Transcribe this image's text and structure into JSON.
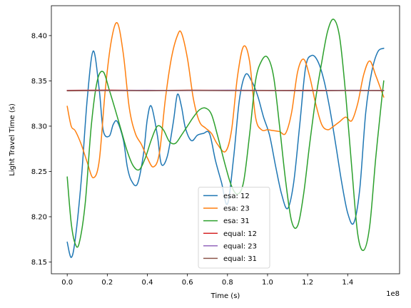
{
  "chart_data": {
    "type": "line",
    "xlabel": "Time (s)",
    "ylabel": "Light Travel Time (s)",
    "x_scale_label": "1e8",
    "x_scale_factor": 100000000,
    "xlim": [
      -0.079,
      1.659
    ],
    "ylim": [
      8.137,
      8.433
    ],
    "x_ticks": [
      0.0,
      0.2,
      0.4,
      0.6,
      0.8,
      1.0,
      1.2,
      1.4
    ],
    "x_tick_labels": [
      "0.0",
      "0.2",
      "0.4",
      "0.6",
      "0.8",
      "1.0",
      "1.2",
      "1.4"
    ],
    "y_ticks": [
      8.15,
      8.2,
      8.25,
      8.3,
      8.35,
      8.4
    ],
    "y_tick_labels": [
      "8.15",
      "8.20",
      "8.25",
      "8.30",
      "8.35",
      "8.40"
    ],
    "grid": false,
    "legend_placement": "lower-center",
    "series": [
      {
        "name": "esa: 12",
        "color": "#1f77b4",
        "x": [
          0.0,
          0.02,
          0.04,
          0.07,
          0.1,
          0.13,
          0.16,
          0.18,
          0.21,
          0.23,
          0.25,
          0.28,
          0.3,
          0.32,
          0.35,
          0.38,
          0.4,
          0.42,
          0.45,
          0.47,
          0.5,
          0.53,
          0.55,
          0.57,
          0.59,
          0.62,
          0.65,
          0.68,
          0.71,
          0.74,
          0.77,
          0.8,
          0.83,
          0.86,
          0.89,
          0.92,
          0.95,
          0.98,
          1.01,
          1.04,
          1.07,
          1.1,
          1.13,
          1.16,
          1.19,
          1.22,
          1.25,
          1.28,
          1.31,
          1.34,
          1.37,
          1.4,
          1.43,
          1.46,
          1.49,
          1.52,
          1.55,
          1.58
        ],
        "y": [
          8.172,
          8.155,
          8.175,
          8.24,
          8.33,
          8.383,
          8.34,
          8.295,
          8.289,
          8.302,
          8.305,
          8.285,
          8.255,
          8.24,
          8.236,
          8.268,
          8.308,
          8.322,
          8.29,
          8.258,
          8.267,
          8.305,
          8.335,
          8.322,
          8.298,
          8.284,
          8.29,
          8.292,
          8.292,
          8.262,
          8.238,
          8.214,
          8.264,
          8.33,
          8.357,
          8.35,
          8.334,
          8.31,
          8.29,
          8.256,
          8.225,
          8.209,
          8.237,
          8.3,
          8.365,
          8.378,
          8.372,
          8.352,
          8.32,
          8.28,
          8.238,
          8.204,
          8.193,
          8.23,
          8.315,
          8.36,
          8.382,
          8.386
        ]
      },
      {
        "name": "esa: 23",
        "color": "#ff7f0e",
        "x": [
          0.0,
          0.02,
          0.04,
          0.07,
          0.1,
          0.13,
          0.16,
          0.19,
          0.22,
          0.25,
          0.28,
          0.31,
          0.34,
          0.37,
          0.4,
          0.43,
          0.46,
          0.49,
          0.52,
          0.55,
          0.57,
          0.6,
          0.63,
          0.66,
          0.69,
          0.72,
          0.75,
          0.79,
          0.82,
          0.85,
          0.88,
          0.91,
          0.94,
          0.97,
          1.0,
          1.03,
          1.06,
          1.09,
          1.12,
          1.15,
          1.18,
          1.21,
          1.24,
          1.27,
          1.3,
          1.33,
          1.36,
          1.39,
          1.42,
          1.45,
          1.48,
          1.51,
          1.54,
          1.57,
          1.58
        ],
        "y": [
          8.322,
          8.3,
          8.295,
          8.28,
          8.26,
          8.243,
          8.262,
          8.34,
          8.394,
          8.414,
          8.38,
          8.32,
          8.292,
          8.28,
          8.265,
          8.255,
          8.27,
          8.33,
          8.375,
          8.4,
          8.403,
          8.375,
          8.33,
          8.305,
          8.298,
          8.292,
          8.28,
          8.272,
          8.295,
          8.355,
          8.388,
          8.372,
          8.31,
          8.296,
          8.296,
          8.295,
          8.294,
          8.292,
          8.315,
          8.36,
          8.374,
          8.355,
          8.325,
          8.302,
          8.296,
          8.3,
          8.305,
          8.31,
          8.306,
          8.325,
          8.357,
          8.372,
          8.356,
          8.338,
          8.332
        ]
      },
      {
        "name": "esa: 31",
        "color": "#2ca02c",
        "x": [
          0.0,
          0.02,
          0.04,
          0.06,
          0.09,
          0.12,
          0.15,
          0.18,
          0.21,
          0.24,
          0.27,
          0.3,
          0.33,
          0.36,
          0.39,
          0.42,
          0.45,
          0.48,
          0.51,
          0.54,
          0.57,
          0.6,
          0.63,
          0.66,
          0.69,
          0.72,
          0.75,
          0.79,
          0.82,
          0.85,
          0.88,
          0.91,
          0.94,
          0.97,
          1.0,
          1.03,
          1.06,
          1.09,
          1.12,
          1.15,
          1.18,
          1.21,
          1.24,
          1.27,
          1.3,
          1.33,
          1.36,
          1.39,
          1.42,
          1.45,
          1.48,
          1.51,
          1.54,
          1.57,
          1.58
        ],
        "y": [
          8.244,
          8.193,
          8.17,
          8.171,
          8.215,
          8.3,
          8.35,
          8.36,
          8.34,
          8.318,
          8.295,
          8.272,
          8.256,
          8.252,
          8.265,
          8.285,
          8.3,
          8.296,
          8.283,
          8.281,
          8.29,
          8.3,
          8.31,
          8.318,
          8.32,
          8.313,
          8.29,
          8.256,
          8.234,
          8.225,
          8.238,
          8.29,
          8.35,
          8.372,
          8.376,
          8.355,
          8.3,
          8.24,
          8.195,
          8.19,
          8.225,
          8.28,
          8.33,
          8.37,
          8.405,
          8.418,
          8.398,
          8.335,
          8.255,
          8.181,
          8.163,
          8.19,
          8.265,
          8.33,
          8.35
        ]
      },
      {
        "name": "equal: 12",
        "color": "#d62728",
        "x": [
          0.0,
          0.2,
          0.4,
          0.6,
          0.8,
          1.0,
          1.2,
          1.4,
          1.58
        ],
        "y": [
          8.3395,
          8.3398,
          8.3394,
          8.3397,
          8.3395,
          8.3393,
          8.3396,
          8.3394,
          8.3395
        ]
      },
      {
        "name": "equal: 23",
        "color": "#9467bd",
        "x": [
          0.0,
          0.2,
          0.4,
          0.6,
          0.8,
          1.0,
          1.2,
          1.4,
          1.58
        ],
        "y": [
          8.3392,
          8.3394,
          8.3396,
          8.3393,
          8.3397,
          8.3395,
          8.3392,
          8.3396,
          8.3394
        ]
      },
      {
        "name": "equal: 31",
        "color": "#8c564b",
        "x": [
          0.0,
          0.2,
          0.4,
          0.6,
          0.8,
          1.0,
          1.2,
          1.4,
          1.58
        ],
        "y": [
          8.339,
          8.3393,
          8.3391,
          8.3395,
          8.3392,
          8.3394,
          8.3391,
          8.3393,
          8.3392
        ]
      }
    ]
  }
}
